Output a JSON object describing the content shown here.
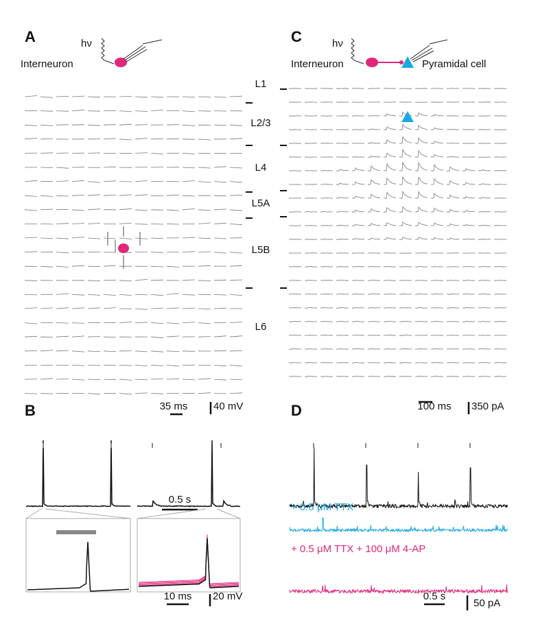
{
  "panels": {
    "A": {
      "label": "A",
      "stimulus": "hν",
      "cell": "Interneuron",
      "scale_time": "35 ms",
      "scale_amp": "40 mV"
    },
    "layers": [
      "L1",
      "L2/3",
      "L4",
      "L5A",
      "L5B",
      "L6"
    ],
    "C": {
      "label": "C",
      "stimulus": "hν",
      "cell": "Interneuron",
      "target": "Pyramidal cell",
      "scale_time": "100 ms",
      "scale_amp": "350 pA"
    },
    "B": {
      "label": "B",
      "scale_top": "0.5 s",
      "scale_time": "10 ms",
      "scale_amp": "20 mV"
    },
    "D": {
      "label": "D",
      "conditions": [
        "+ 0.5 μM TTX",
        "+ 0.5 μM TTX + 100 μM 4-AP"
      ],
      "scale_time": "0.5 s",
      "scale_amp": "50 pA"
    }
  }
}
